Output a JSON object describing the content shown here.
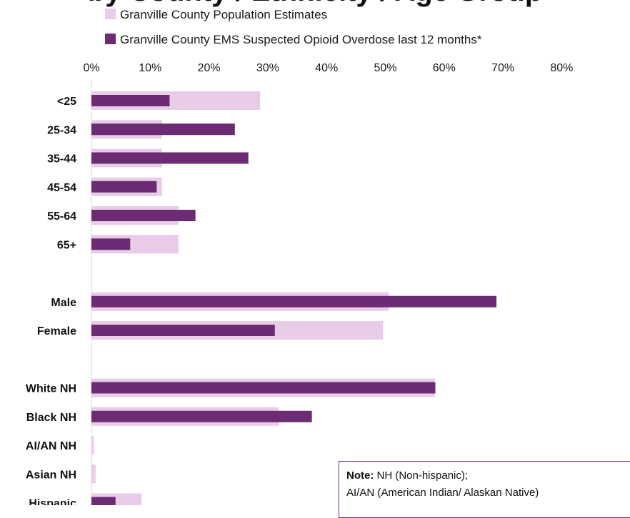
{
  "chart_data": {
    "type": "bar",
    "orientation": "horizontal",
    "title": "by County / Ethnicity / Age Group",
    "categories": [
      "<25",
      "25-34",
      "35-44",
      "45-54",
      "55-64",
      "65+",
      "",
      "Male",
      "Female",
      "",
      "White NH",
      "Black NH",
      "AI/AN NH",
      "Asian NH",
      "Hispanic"
    ],
    "series": [
      {
        "name": "Granville County Population Estimates",
        "color": "#e8cce8",
        "values": [
          28.7,
          12.0,
          12.0,
          12.0,
          14.8,
          14.8,
          null,
          50.6,
          49.6,
          null,
          58.4,
          31.9,
          0.4,
          0.7,
          8.5
        ]
      },
      {
        "name": "Granville County EMS Suspected Opioid Overdose last 12 months*",
        "color": "#6b2c73",
        "values": [
          13.3,
          24.4,
          26.7,
          11.1,
          17.7,
          6.6,
          null,
          68.9,
          31.2,
          null,
          58.5,
          37.5,
          0,
          0,
          4.1
        ]
      }
    ],
    "x_ticks": [
      "0%",
      "10%",
      "20%",
      "30%",
      "40%",
      "50%",
      "60%",
      "70%",
      "80%"
    ],
    "xlim": [
      0,
      80
    ],
    "x_unit": "%",
    "grid": false,
    "legend_position": "top"
  },
  "note": {
    "label": "Note:",
    "line1": " NH (Non-hispanic);",
    "line2": "AI/AN (American Indian/ Alaskan Native)"
  }
}
